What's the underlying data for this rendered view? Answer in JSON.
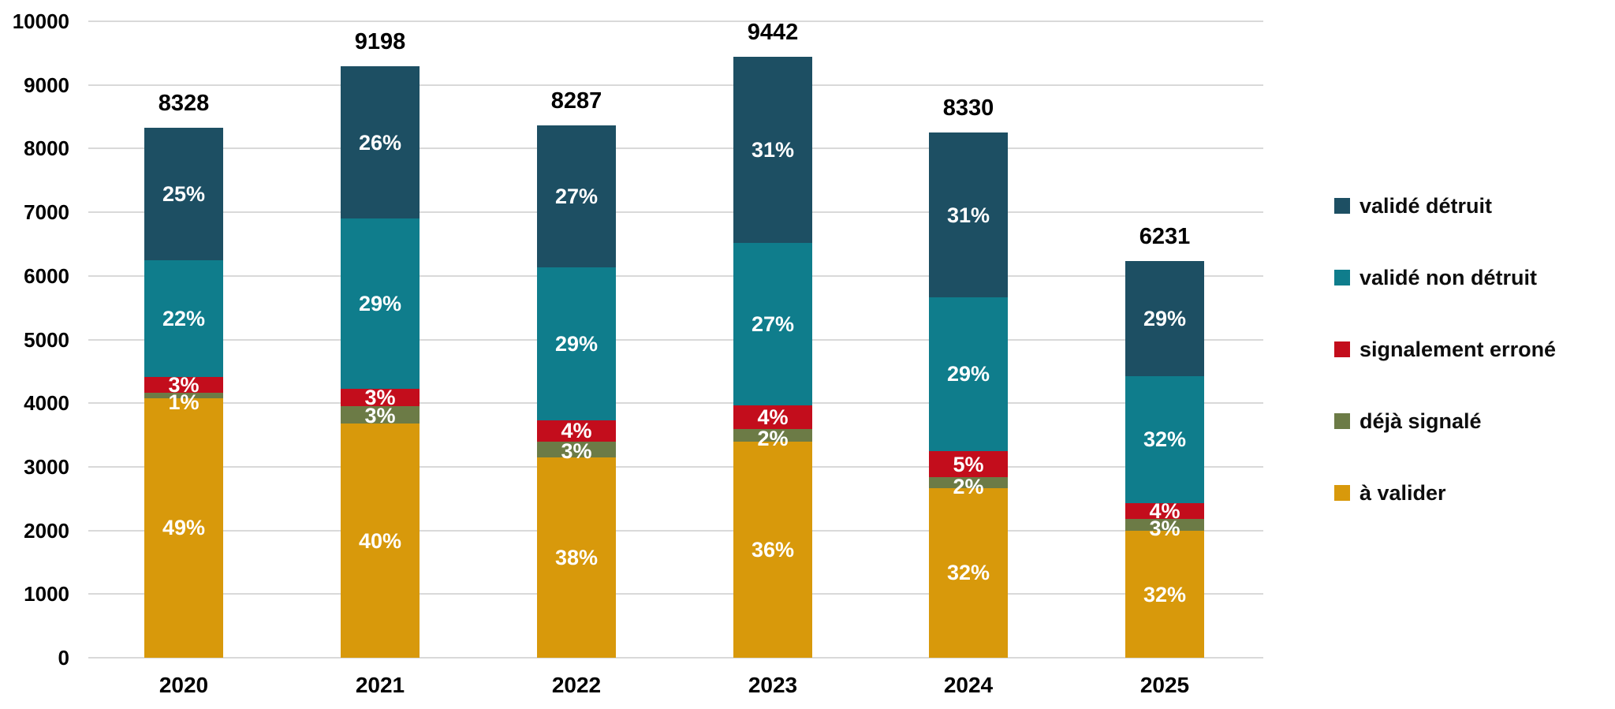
{
  "chart_data": {
    "type": "bar",
    "stacked": true,
    "title": "",
    "xlabel": "",
    "ylabel": "",
    "grid": "horizontal",
    "legend_position": "right",
    "categories": [
      "2020",
      "2021",
      "2022",
      "2023",
      "2024",
      "2025"
    ],
    "totals": [
      8328,
      9198,
      8287,
      9442,
      8330,
      6231
    ],
    "y_axis": {
      "min": 0,
      "max": 10000,
      "step": 1000,
      "tick_labels": [
        "0",
        "1000",
        "2000",
        "3000",
        "4000",
        "5000",
        "6000",
        "7000",
        "8000",
        "9000",
        "10000"
      ]
    },
    "series_bottom_to_top": [
      {
        "key": "a_valider",
        "name": "à valider",
        "color": "#d8990b",
        "pct": [
          49,
          40,
          38,
          36,
          32,
          32
        ]
      },
      {
        "key": "deja_signale",
        "name": "déjà signalé",
        "color": "#6c7b46",
        "pct": [
          1,
          3,
          3,
          2,
          2,
          3
        ]
      },
      {
        "key": "signalement_errone",
        "name": "signalement erroné",
        "color": "#c30d1c",
        "pct": [
          3,
          3,
          4,
          4,
          5,
          4
        ]
      },
      {
        "key": "valide_non_detruit",
        "name": "validé non détruit",
        "color": "#0f7d8c",
        "pct": [
          22,
          29,
          29,
          27,
          29,
          32
        ]
      },
      {
        "key": "valide_detruit",
        "name": "validé détruit",
        "color": "#1d4f63",
        "pct": [
          25,
          26,
          27,
          31,
          31,
          29
        ]
      }
    ],
    "legend_top_to_bottom": [
      {
        "label": "validé détruit",
        "color": "#1d4f63"
      },
      {
        "label": "validé non détruit",
        "color": "#0f7d8c"
      },
      {
        "label": "signalement erroné",
        "color": "#c30d1c"
      },
      {
        "label": "déjà signalé",
        "color": "#6c7b46"
      },
      {
        "label": "à valider",
        "color": "#d8990b"
      }
    ],
    "colors": {
      "gridline": "#d9d9d9",
      "axis_text": "#000000",
      "segment_label_text": "#ffffff",
      "background": "#ffffff"
    }
  }
}
